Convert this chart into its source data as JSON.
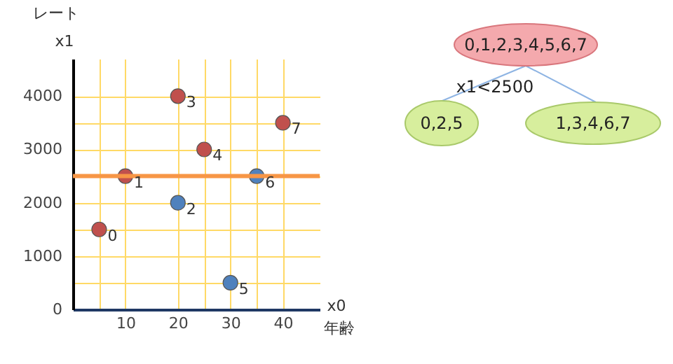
{
  "chart_data": [
    {
      "type": "scatter",
      "xlabel": "x0",
      "ylabel": "x1",
      "annotations": [
        "レート",
        "年齢",
        {
          "text": "0",
          "x": 5,
          "y": 1500
        },
        {
          "text": "1",
          "x": 10,
          "y": 2500
        },
        {
          "text": "2",
          "x": 20,
          "y": 2000
        },
        {
          "text": "3",
          "x": 20,
          "y": 4000
        },
        {
          "text": "4",
          "x": 25,
          "y": 3000
        },
        {
          "text": "5",
          "x": 30,
          "y": 500
        },
        {
          "text": "6",
          "x": 35,
          "y": 2500
        },
        {
          "text": "7",
          "x": 40,
          "y": 3500
        }
      ],
      "series": [
        {
          "color": "#c0504d",
          "x": [
            5,
            10,
            20,
            25,
            40
          ],
          "values": [
            1500,
            2500,
            4000,
            3000,
            3500
          ]
        },
        {
          "color": "#4f81bd",
          "x": [
            20,
            30,
            35
          ],
          "values": [
            2000,
            500,
            2500
          ]
        }
      ],
      "xlim": [
        0,
        47
      ],
      "ylim": [
        0,
        4700
      ],
      "xticks": [
        {
          "value": 5,
          "label": null
        },
        10,
        20,
        {
          "value": 25,
          "label": null
        },
        30,
        {
          "value": 35,
          "label": null
        },
        40
      ],
      "yticks": [
        0,
        {
          "value": 500,
          "label": null
        },
        1000,
        {
          "value": 1500,
          "label": null
        },
        2000,
        {
          "value": 2500,
          "label": null
        },
        3000,
        {
          "value": 3500,
          "label": null
        },
        4000
      ],
      "ref_lines": [
        {
          "axis": "y",
          "value": 2500,
          "color": "#f79646"
        }
      ],
      "grid": true,
      "marker": "circle"
    },
    {
      "type": "other",
      "annotations": [
        "0,1,2,3,4,5,6,7",
        "x1<2500",
        "0,2,5",
        "1,3,4,6,7"
      ]
    }
  ]
}
